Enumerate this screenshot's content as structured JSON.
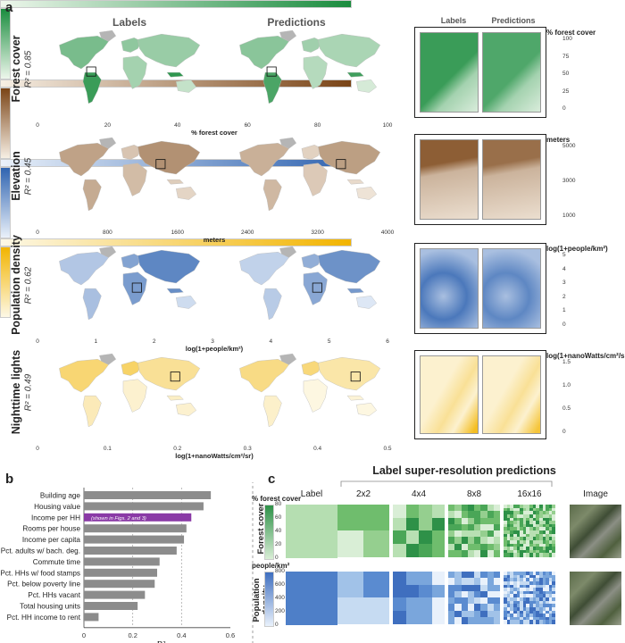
{
  "panel_a": {
    "letter": "a",
    "col_labels": "Labels",
    "col_predictions": "Predictions",
    "inset_labels": "Labels",
    "inset_predictions": "Predictions",
    "rows": [
      {
        "title": "Forest cover",
        "r2": "R² = 0.85",
        "cbar_title": "% forest cover",
        "ticks": [
          "0",
          "20",
          "40",
          "60",
          "80",
          "100"
        ],
        "inset_title": "% forest cover",
        "inset_ticks": [
          "100",
          "75",
          "50",
          "25",
          "0"
        ],
        "color_lo": "#eef7ec",
        "color_hi": "#1a8c3e"
      },
      {
        "title": "Elevation",
        "r2": "R² = 0.45",
        "cbar_title": "meters",
        "ticks": [
          "0",
          "800",
          "1600",
          "2400",
          "3200",
          "4000"
        ],
        "inset_title": "meters",
        "inset_ticks": [
          "5000",
          "3000",
          "1000"
        ],
        "color_lo": "#f7efe4",
        "color_hi": "#7a4416"
      },
      {
        "title": "Population density",
        "r2": "R² = 0.62",
        "cbar_title": "log(1+people/km²)",
        "ticks": [
          "0",
          "1",
          "2",
          "3",
          "4",
          "5",
          "6"
        ],
        "inset_title": "log(1+people/km²)",
        "inset_ticks": [
          "5",
          "4",
          "3",
          "2",
          "1",
          "0"
        ],
        "color_lo": "#eaf1fa",
        "color_hi": "#2f63b0"
      },
      {
        "title": "Nighttime lights",
        "r2": "R² = 0.49",
        "cbar_title": "log(1+nanoWatts/cm²/sr)",
        "ticks": [
          "0",
          "0.1",
          "0.2",
          "0.3",
          "0.4",
          "0.5"
        ],
        "inset_title": "log(1+nanoWatts/cm²/sr)",
        "inset_ticks": [
          "1.5",
          "1.0",
          "0.5",
          "0"
        ],
        "color_lo": "#fdf8e6",
        "color_hi": "#f2b400"
      }
    ]
  },
  "panel_b": {
    "letter": "b",
    "highlight_note": "(shown in Figs. 2 and 3)",
    "highlight_color": "#8a3aa6",
    "bar_color": "#8c8c8c"
  },
  "panel_c": {
    "letter": "c",
    "title": "Label super-resolution predictions",
    "col_labels": [
      "Label",
      "2x2",
      "4x4",
      "8x8",
      "16x16",
      "Image"
    ],
    "rows": [
      {
        "title": "Forest cover",
        "cbar_title": "% forest cover",
        "ticks": [
          "80",
          "60",
          "40",
          "20",
          "0"
        ]
      },
      {
        "title": "Population density",
        "cbar_title": "people/km²",
        "ticks": [
          "800",
          "600",
          "400",
          "200",
          "0"
        ]
      }
    ]
  },
  "chart_data": [
    {
      "type": "bar",
      "orientation": "horizontal",
      "title": "",
      "xlabel": "R²",
      "ylabel": "",
      "categories": [
        "Building age",
        "Housing value",
        "Income per HH",
        "Rooms per house",
        "Income per capita",
        "Pct. adults w/ bach. deg.",
        "Commute time",
        "Pct. HHs w/ food stamps",
        "Pct. below poverty line",
        "Pct. HHs vacant",
        "Total housing units",
        "Pct. HH income to rent"
      ],
      "values": [
        0.52,
        0.49,
        0.44,
        0.42,
        0.41,
        0.38,
        0.31,
        0.3,
        0.29,
        0.25,
        0.22,
        0.06
      ],
      "highlight": "Income per HH",
      "xlim": [
        0,
        0.6
      ],
      "xticks": [
        "0",
        "0.2",
        "0.4",
        "0.6"
      ],
      "grid": "dashed vertical at 0.2 and 0.4"
    }
  ]
}
